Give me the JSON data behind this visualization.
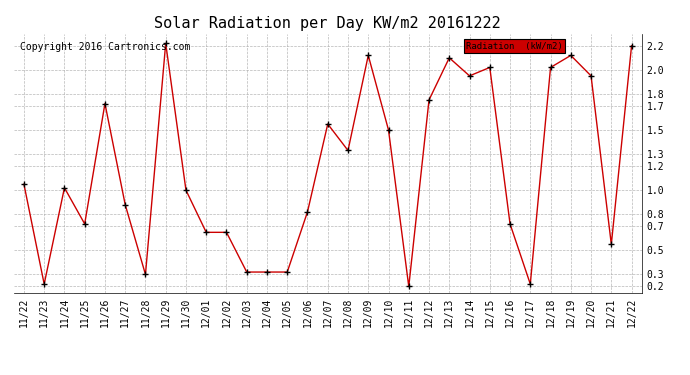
{
  "title": "Solar Radiation per Day KW/m2 20161222",
  "copyright_text": "Copyright 2016 Cartronics.com",
  "legend_label": "Radiation  (kW/m2)",
  "dates": [
    "11/22",
    "11/23",
    "11/24",
    "11/25",
    "11/26",
    "11/27",
    "11/28",
    "11/29",
    "11/30",
    "12/01",
    "12/02",
    "12/03",
    "12/04",
    "12/05",
    "12/06",
    "12/07",
    "12/08",
    "12/09",
    "12/10",
    "12/11",
    "12/12",
    "12/13",
    "12/14",
    "12/15",
    "12/16",
    "12/17",
    "12/18",
    "12/19",
    "12/20",
    "12/21",
    "12/22"
  ],
  "values": [
    1.05,
    0.22,
    1.02,
    0.72,
    1.72,
    0.88,
    0.3,
    2.22,
    1.0,
    0.65,
    0.65,
    0.32,
    0.32,
    0.32,
    0.82,
    1.55,
    1.33,
    2.12,
    1.5,
    0.2,
    1.75,
    2.1,
    1.95,
    2.02,
    0.72,
    0.22,
    2.02,
    2.12,
    1.95,
    0.55,
    2.2
  ],
  "ylim": [
    0.15,
    2.3
  ],
  "yticks": [
    0.2,
    0.3,
    0.5,
    0.7,
    0.8,
    1.0,
    1.2,
    1.3,
    1.5,
    1.7,
    1.8,
    2.0,
    2.2
  ],
  "line_color": "#cc0000",
  "marker_color": "#000000",
  "bg_color": "#ffffff",
  "grid_color": "#b0b0b0",
  "legend_bg": "#cc0000",
  "title_fontsize": 11,
  "tick_fontsize": 7,
  "copyright_fontsize": 7
}
